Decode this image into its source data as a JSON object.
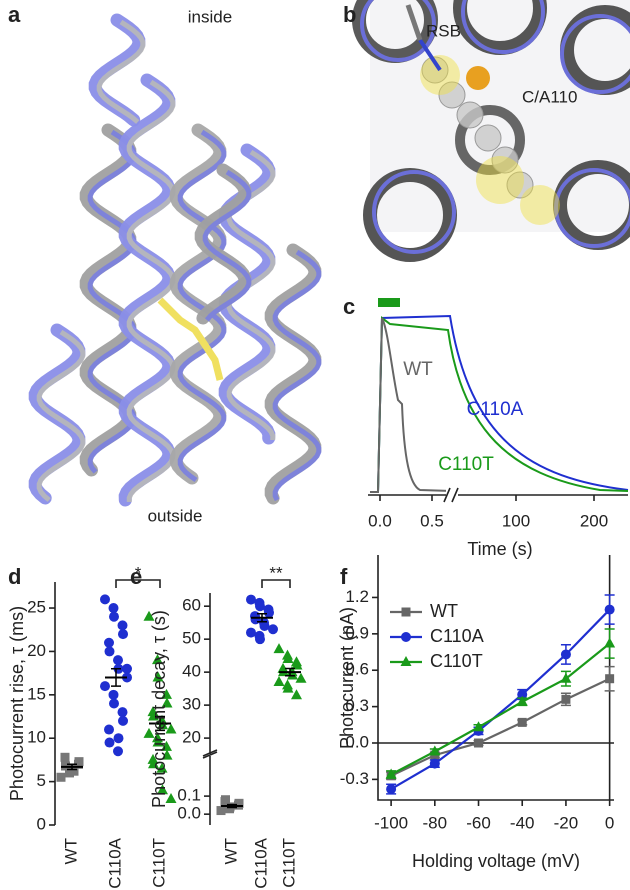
{
  "figure": {
    "a": {
      "panel_label": "a",
      "top_label": "inside",
      "bottom_label": "outside"
    },
    "b": {
      "panel_label": "b",
      "labels": [
        "RSB",
        "C/A110"
      ]
    },
    "c": {
      "panel_label": "c",
      "trace_labels": [
        "WT",
        "C110A",
        "C110T"
      ],
      "x_tick_labels": [
        "0.0",
        "0.5",
        "100",
        "200"
      ],
      "x_label": "Time (s)"
    }
  },
  "chart_data": [
    {
      "type": "dotplot",
      "panel_label": "d",
      "y_label": "Photocurrent rise, τ (ms)",
      "categories": [
        "WT",
        "C110A",
        "C110T"
      ],
      "colors": [
        "#777777",
        "#1f2fd0",
        "#1a9a1a"
      ],
      "markers": [
        "square",
        "circle",
        "triangle"
      ],
      "values": [
        [
          5.5,
          6,
          6.5,
          7,
          7.3,
          7.8,
          6.8,
          6.2
        ],
        [
          26,
          25,
          24,
          23,
          22,
          21,
          20,
          19,
          18,
          17,
          16,
          15,
          14,
          13,
          12,
          11,
          9.5,
          8.5,
          10,
          18
        ],
        [
          24,
          19,
          17,
          15,
          14,
          13,
          12.5,
          12,
          11.5,
          11,
          10.5,
          10,
          9.5,
          9,
          8,
          7.5,
          7,
          6.5,
          4,
          3
        ]
      ],
      "means": [
        6.7,
        17,
        11.7
      ],
      "sems": [
        0.3,
        1,
        0.8
      ],
      "ylim": [
        0,
        28
      ],
      "yticks": [
        0,
        5,
        10,
        15,
        20,
        25
      ],
      "significance": "*"
    },
    {
      "type": "dotplot",
      "panel_label": "e",
      "y_label": "Photocurrent decay, τ (s)",
      "categories": [
        "WT",
        "C110A",
        "C110T"
      ],
      "colors": [
        "#777777",
        "#1f2fd0",
        "#1a9a1a"
      ],
      "markers": [
        "square",
        "circle",
        "triangle"
      ],
      "values": [
        [
          0.02,
          0.03,
          0.04,
          0.05,
          0.06,
          0.07,
          0.08
        ],
        [
          62,
          61,
          60,
          59,
          58,
          57,
          56,
          55,
          54,
          53,
          52,
          51,
          50
        ],
        [
          47,
          45,
          44,
          43,
          42,
          41,
          40,
          40,
          39,
          38,
          37,
          36,
          35,
          33
        ]
      ],
      "means": [
        0.045,
        56.5,
        40
      ],
      "sems": [
        0.008,
        1.2,
        1.1
      ],
      "ylim": [
        17,
        64
      ],
      "yticks": [
        20,
        30,
        40,
        50,
        60
      ],
      "ylim_lower": [
        -0.06,
        0.3
      ],
      "yticks_lower": [
        {
          "value": 0,
          "label": "0.0"
        },
        0.1
      ],
      "significance": "**"
    },
    {
      "type": "line",
      "panel_label": "f",
      "x_label": "Holding voltage (mV)",
      "y_label": "Photocurrent (nA)",
      "x": [
        -100,
        -80,
        -60,
        -40,
        -20,
        0
      ],
      "xlim": [
        -106,
        2
      ],
      "xticks": [
        -100,
        -80,
        -60,
        -40,
        -20,
        0
      ],
      "ylim": [
        -0.47,
        1.55
      ],
      "yticks": [
        -0.3,
        {
          "value": 0,
          "label": "0.0"
        },
        0.3,
        0.6,
        0.9,
        1.2
      ],
      "series": [
        {
          "name": "WT",
          "color": "#666666",
          "marker": "square",
          "values": [
            -0.27,
            -0.1,
            0.0,
            0.17,
            0.36,
            0.53
          ],
          "errors": [
            0.03,
            0.02,
            0.02,
            0.02,
            0.05,
            0.1
          ]
        },
        {
          "name": "C110A",
          "color": "#1f2fd0",
          "marker": "circle",
          "values": [
            -0.38,
            -0.17,
            0.1,
            0.4,
            0.73,
            1.1
          ],
          "errors": [
            0.04,
            0.03,
            0.03,
            0.04,
            0.08,
            0.12
          ]
        },
        {
          "name": "C110T",
          "color": "#1a9a1a",
          "marker": "triangle",
          "values": [
            -0.26,
            -0.07,
            0.13,
            0.34,
            0.53,
            0.82
          ],
          "errors": [
            0.03,
            0.02,
            0.02,
            0.03,
            0.06,
            0.12
          ]
        }
      ]
    }
  ]
}
